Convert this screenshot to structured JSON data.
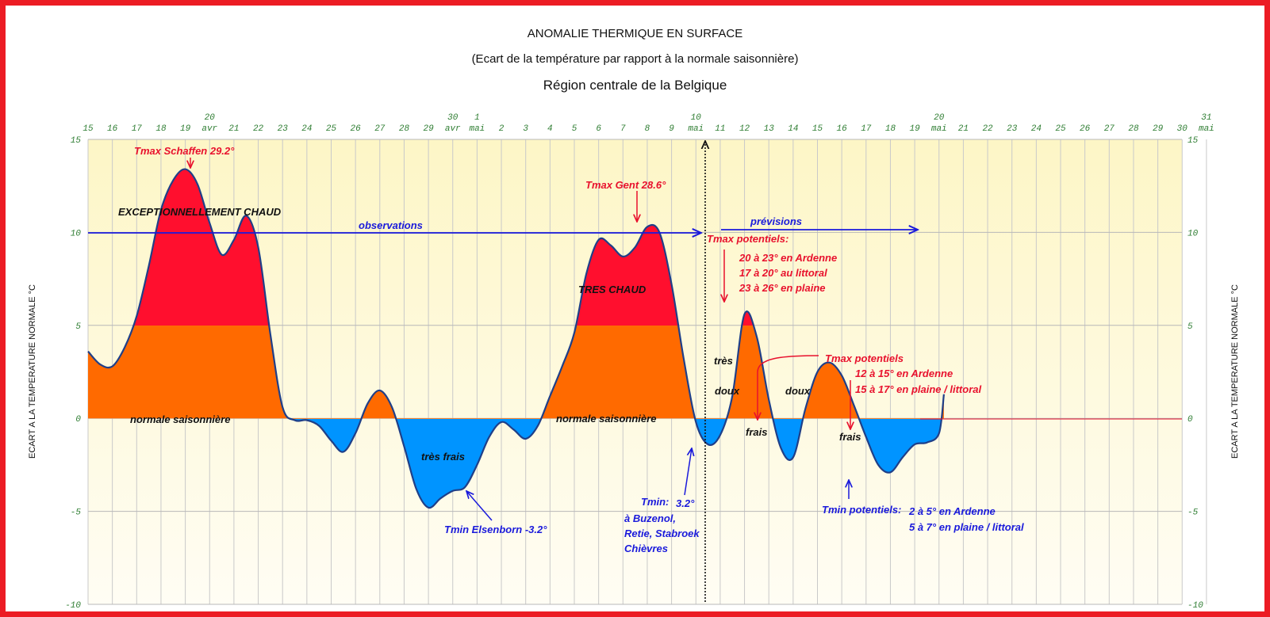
{
  "titles": {
    "line1": "ANOMALIE THERMIQUE EN SURFACE",
    "line2": "(Ecart de la température par rapport à la normale saisonnière)",
    "line3": "Région centrale de la Belgique"
  },
  "y_axis_label": "ECART A LA TEMPERATURE NORMALE °C",
  "colors": {
    "frame": "#ec1c24",
    "exceptional": "#ff0f2e",
    "warm": "#ff6a00",
    "cool": "#0094ff",
    "curve": "#1f3f88",
    "plot_bg_top": "#fdf6c6",
    "plot_bg_bottom": "#fffdf4",
    "annotation_red": "#e8112d",
    "annotation_blue": "#1a1adb",
    "tick_green": "#2e7d32"
  },
  "chart_data": {
    "type": "area",
    "xlabel": "",
    "ylabel": "ECART A LA TEMPERATURE NORMALE °C",
    "ylim": [
      -10,
      15
    ],
    "yticks": [
      15,
      10,
      5,
      0,
      -5,
      -10
    ],
    "x_ticks": [
      {
        "label": "15"
      },
      {
        "label": "16"
      },
      {
        "label": "17"
      },
      {
        "label": "18"
      },
      {
        "label": "19"
      },
      {
        "label": "20",
        "sub": "avr"
      },
      {
        "label": "21"
      },
      {
        "label": "22"
      },
      {
        "label": "23"
      },
      {
        "label": "24"
      },
      {
        "label": "25"
      },
      {
        "label": "26"
      },
      {
        "label": "27"
      },
      {
        "label": "28"
      },
      {
        "label": "29"
      },
      {
        "label": "30",
        "sub": "avr"
      },
      {
        "label": "1",
        "sub": "mai"
      },
      {
        "label": "2"
      },
      {
        "label": "3"
      },
      {
        "label": "4"
      },
      {
        "label": "5"
      },
      {
        "label": "6"
      },
      {
        "label": "7"
      },
      {
        "label": "8"
      },
      {
        "label": "9"
      },
      {
        "label": "10",
        "sub": "mai"
      },
      {
        "label": "11"
      },
      {
        "label": "12"
      },
      {
        "label": "13"
      },
      {
        "label": "14"
      },
      {
        "label": "15"
      },
      {
        "label": "16"
      },
      {
        "label": "17"
      },
      {
        "label": "18"
      },
      {
        "label": "19"
      },
      {
        "label": "20",
        "sub": "mai"
      },
      {
        "label": "21"
      },
      {
        "label": "22"
      },
      {
        "label": "23"
      },
      {
        "label": "24"
      },
      {
        "label": "25"
      },
      {
        "label": "26"
      },
      {
        "label": "27"
      },
      {
        "label": "28"
      },
      {
        "label": "29"
      },
      {
        "label": "30"
      },
      {
        "label": "31",
        "sub": "mai"
      }
    ],
    "thresholds": {
      "normal": 0,
      "exceptional": 5
    },
    "series": [
      {
        "x": [
          0,
          0.5,
          1,
          1.5,
          2,
          2.5,
          3,
          3.5,
          4,
          4.5,
          5,
          5.5,
          6,
          6.5,
          7,
          7.5,
          8,
          8.5,
          9,
          9.5,
          10,
          10.5,
          11,
          11.5,
          12,
          12.5,
          13,
          13.5,
          14,
          14.5,
          15,
          15.5,
          16,
          16.5,
          17,
          17.5,
          18,
          18.5,
          19,
          19.5,
          20,
          20.5,
          21,
          21.5,
          22,
          22.5,
          23,
          23.5,
          24,
          24.5,
          25,
          25.5,
          26,
          26.5,
          27,
          27.5,
          28,
          28.5,
          29,
          29.5,
          30,
          30.5,
          31,
          31.5,
          32,
          32.5,
          33,
          33.5,
          34,
          34.5,
          35,
          35.2
        ],
        "y": [
          3.6,
          2.9,
          2.8,
          3.8,
          5.5,
          8.2,
          11.2,
          12.8,
          13.4,
          12.6,
          10.5,
          8.8,
          9.6,
          10.9,
          9.2,
          4.5,
          0.6,
          -0.1,
          -0.1,
          -0.4,
          -1.2,
          -1.8,
          -0.8,
          0.8,
          1.5,
          0.6,
          -1.5,
          -3.8,
          -4.8,
          -4.3,
          -3.9,
          -3.7,
          -2.5,
          -1.0,
          -0.2,
          -0.6,
          -1.1,
          -0.4,
          1.2,
          2.8,
          4.6,
          7.8,
          9.6,
          9.3,
          8.7,
          9.2,
          10.3,
          10.0,
          7.2,
          3.2,
          -0.2,
          -1.4,
          -0.9,
          1.2,
          5.6,
          4.4,
          1.0,
          -1.6,
          -2.1,
          0.5,
          2.5,
          3.0,
          2.3,
          0.7,
          -1.0,
          -2.5,
          -2.9,
          -2.1,
          -1.4,
          -1.3,
          -0.8,
          1.3
        ]
      }
    ],
    "legend_zones": [
      "EXCEPTIONNELLEMENT CHAUD",
      "TRES CHAUD",
      "normale saisonnière",
      "très frais",
      "frais",
      "très",
      "doux"
    ]
  },
  "annotations": {
    "tmax_schaffen": "Tmax Schaffen 29.2°",
    "exceptionnellement_chaud": "EXCEPTIONNELLEMENT CHAUD",
    "observations": "observations",
    "previsions": "prévisions",
    "tmax_gent": "Tmax Gent 28.6°",
    "tres_chaud": "TRES CHAUD",
    "normale_1": "normale saisonnière",
    "normale_2": "normale saisonnière",
    "tres_frais": "très frais",
    "tmin_elsenborn": "Tmin Elsenborn -3.2°",
    "tmin_label": "Tmin:",
    "tmin_value": "3.2°",
    "tmin_place1": "à Buzenol,",
    "tmin_place2": "Retie, Stabroek",
    "tmin_place3": "Chièvres",
    "tmax_pot_1": "Tmax potentiels:",
    "tmax_pot_1_l1": "20 à 23° en Ardenne",
    "tmax_pot_1_l2": "17 à 20° au littoral",
    "tmax_pot_1_l3": "23 à 26° en plaine",
    "tres": "très",
    "doux_1": "doux",
    "doux_2": "doux",
    "frais_1": "frais",
    "frais_2": "frais",
    "tmax_pot_2": "Tmax potentiels",
    "tmax_pot_2_l1": "12 à 15° en Ardenne",
    "tmax_pot_2_l2": "15 à 17° en plaine / littoral",
    "tmin_pot": "Tmin potentiels:",
    "tmin_pot_l1": "2 à 5° en Ardenne",
    "tmin_pot_l2": "5 à 7° en plaine / littoral"
  }
}
